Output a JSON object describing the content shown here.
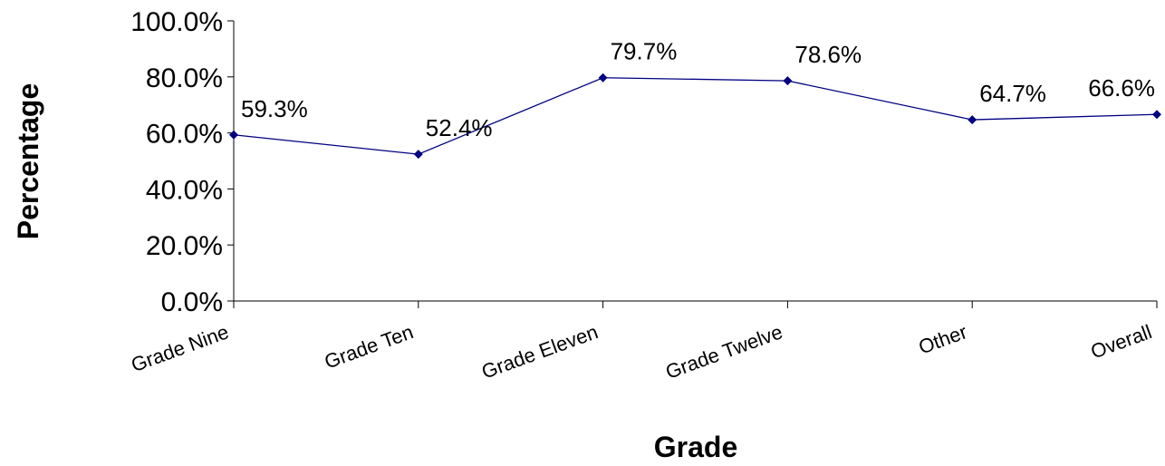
{
  "chart_data": {
    "type": "line",
    "title": "",
    "xlabel": "Grade",
    "ylabel": "Percentage",
    "ylim": [
      0,
      100
    ],
    "yticks": [
      "0.0%",
      "20.0%",
      "40.0%",
      "60.0%",
      "80.0%",
      "100.0%"
    ],
    "categories": [
      "Grade Nine",
      "Grade Ten",
      "Grade Eleven",
      "Grade Twelve",
      "Other",
      "Overall"
    ],
    "series": [
      {
        "values": [
          59.3,
          52.4,
          79.7,
          78.6,
          64.7,
          66.6
        ],
        "labels": [
          "59.3%",
          "52.4%",
          "79.7%",
          "78.6%",
          "64.7%",
          "66.6%"
        ],
        "color": "#000080",
        "marker": "diamond"
      }
    ],
    "grid": false,
    "legend": "none"
  }
}
